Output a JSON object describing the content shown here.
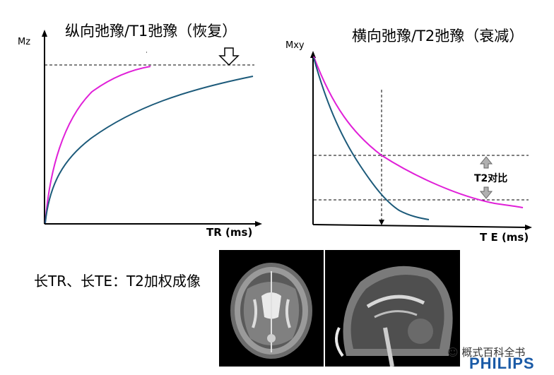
{
  "left_chart": {
    "title": "纵向弛豫/T1弛豫（恢复）",
    "ylabel": "Mz",
    "xlabel_bold": "TR",
    "xlabel_unit": "(ms)",
    "down_arrow_icon": "down-arrow-icon"
  },
  "right_chart": {
    "title": "横向弛豫/T2弛豫（衰减）",
    "ylabel": "Mxy",
    "xlabel_bold": "T E",
    "xlabel_unit": "(ms)",
    "contrast_label": "T2对比"
  },
  "caption": "长TR、长TE：T2加权成像",
  "watermark": {
    "text": "概式百科全书",
    "brand": "PHILIPS"
  },
  "colors": {
    "magenta": "#e020d8",
    "teal": "#1c5a7a"
  }
}
